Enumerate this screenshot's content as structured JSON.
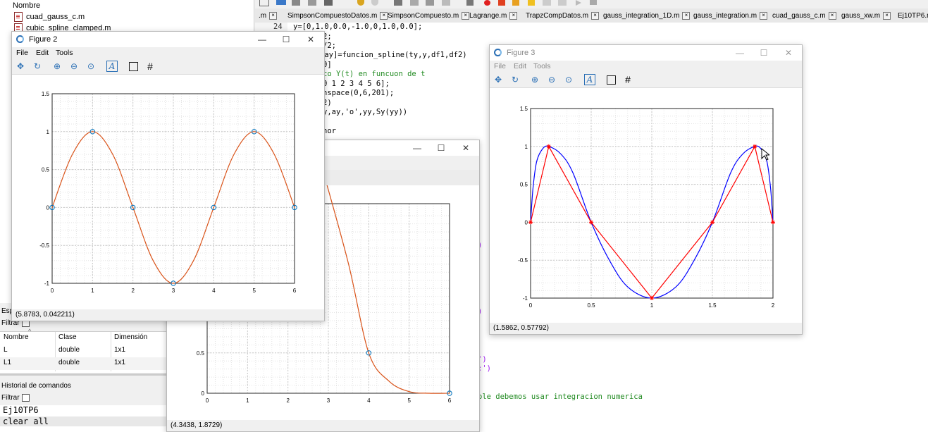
{
  "file_browser": {
    "header": "Nombre",
    "files": [
      "cuad_gauss_c.m",
      "cubic_spline_clamped.m"
    ]
  },
  "editor": {
    "tabs": [
      "SimpsonCompuestoDatos.m",
      "SimpsonCompuesto.m",
      "Lagrange.m",
      "TrapzCompDatos.m",
      "gauss_integration_1D.m",
      "gauss_integration.m",
      "cuad_gauss_c.m",
      "gauss_xw.m",
      "Ej10TP6.m"
    ],
    "tab_partial": ".m",
    "line_number": "24",
    "code_lines": [
      "y=[0,1.0,0.0,-1.0,0,1.0,0.0];",
      "2;",
      "/2;",
      ",ay]=funcion_spline(ty,y,df1,df2)",
      "0]",
      "co Y(t) en funcuon de t",
      "0 1 2 3 4 5 6];",
      "nspace(0,6,201);",
      "2)",
      "y,ay,'o',yy,Sy(yy))",
      "",
      "nor"
    ],
    "fragment_paren_1": ")",
    "fragment_paren_2": ")",
    "fragment_quote_1": "')",
    "fragment_quote_2": ":')",
    "comment_line": "ole debemos usar integracion numerica"
  },
  "workspace": {
    "label_partial": "Esp",
    "filter_label": "Filtrar",
    "columns": [
      "Nombre",
      "Clase",
      "Dimensión"
    ],
    "rows": [
      {
        "name": "L",
        "class": "double",
        "dim": "1x1"
      },
      {
        "name": "L1",
        "class": "double",
        "dim": "1x1"
      }
    ]
  },
  "command_history": {
    "title": "Historial de comandos",
    "filter_label": "Filtrar",
    "lines": [
      "Ej10TP6",
      "clear all"
    ]
  },
  "figure2": {
    "title": "Figure 2",
    "menu": [
      "File",
      "Edit",
      "Tools"
    ],
    "status": "(5.8783, 0.042211)",
    "win_min": "—",
    "win_max": "☐",
    "win_close": "✕"
  },
  "figure3": {
    "title": "Figure 3",
    "menu": [
      "File",
      "Edit",
      "Tools"
    ],
    "status": "(1.5862, 0.57792)",
    "win_min": "—",
    "win_max": "☐",
    "win_close": "✕"
  },
  "figure_back": {
    "status": "(4.3438, 1.8729)",
    "win_min": "—",
    "win_max": "☐",
    "win_close": "✕"
  },
  "chart_data": [
    {
      "type": "line",
      "series": [
        {
          "name": "",
          "kind": "markers-circle",
          "x": [
            0,
            1,
            2,
            3,
            4,
            5,
            6
          ],
          "y": [
            0,
            1,
            0,
            -1,
            0,
            1,
            0
          ]
        },
        {
          "name": "",
          "kind": "spline-curve",
          "x": [
            0,
            0.5,
            1,
            1.5,
            2,
            2.5,
            3,
            3.5,
            4,
            4.5,
            5,
            5.5,
            6
          ],
          "y": [
            0,
            0.7,
            1,
            0.7,
            0,
            -0.7,
            -1,
            -0.7,
            0,
            0.7,
            1,
            0.7,
            0
          ]
        }
      ],
      "xlim": [
        0,
        6
      ],
      "ylim": [
        -1,
        1.5
      ],
      "xticks": [
        "0",
        "1",
        "2",
        "3",
        "4",
        "5",
        "6"
      ],
      "yticks": [
        "-1",
        "-0.5",
        "0",
        "0.5",
        "1",
        "1.5"
      ],
      "grid": true,
      "colors": {
        "curve": "#d95319",
        "markers": "#0072bd"
      }
    },
    {
      "type": "line",
      "series": [
        {
          "name": "",
          "kind": "curve",
          "color": "#0000ff",
          "x": [
            0,
            0.02,
            0.05,
            0.1,
            0.15,
            0.25,
            0.35,
            0.5,
            0.65,
            0.8,
            1,
            1.2,
            1.35,
            1.5,
            1.65,
            1.75,
            1.85,
            1.9,
            1.95,
            1.98,
            2
          ],
          "y": [
            0,
            0.45,
            0.8,
            0.97,
            1,
            0.9,
            0.65,
            0,
            -0.5,
            -0.85,
            -1,
            -0.85,
            -0.5,
            0,
            0.65,
            0.9,
            1,
            0.97,
            0.8,
            0.45,
            0
          ]
        },
        {
          "name": "",
          "kind": "line-star",
          "color": "#ff0000",
          "x": [
            0,
            0.15,
            0.5,
            1,
            1.5,
            1.85,
            2
          ],
          "y": [
            0,
            1,
            0,
            -1,
            0,
            1,
            0
          ]
        }
      ],
      "xlim": [
        0,
        2
      ],
      "ylim": [
        -1,
        1.5
      ],
      "xticks": [
        "0",
        "0.5",
        "1",
        "1.5",
        "2"
      ],
      "yticks": [
        "-1",
        "-0.5",
        "0",
        "0.5",
        "1",
        "1.5"
      ],
      "grid": true
    },
    {
      "type": "line",
      "series": [
        {
          "name": "",
          "kind": "curve-with-circles",
          "color": "#d95319",
          "x": [
            2.9,
            3.5,
            4,
            4.5,
            5,
            5.5,
            6
          ],
          "y": [
            2.7,
            1.6,
            0.5,
            0.15,
            0.02,
            0,
            0
          ]
        },
        {
          "name": "",
          "kind": "markers-circle",
          "color": "#0072bd",
          "x": [
            4,
            6
          ],
          "y": [
            0.5,
            0
          ]
        }
      ],
      "xlim": [
        0,
        6
      ],
      "xticks": [
        "0",
        "1",
        "2",
        "3",
        "4",
        "5",
        "6"
      ],
      "yticks": [
        "0",
        "0.5"
      ],
      "grid": true
    }
  ]
}
